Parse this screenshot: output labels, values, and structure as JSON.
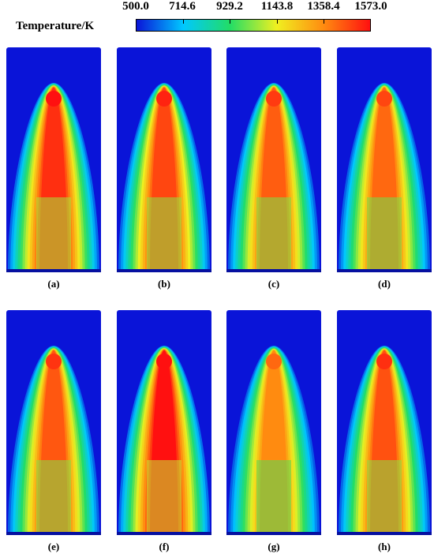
{
  "colorbar": {
    "title": "Temperature/K",
    "min": 500.0,
    "max": 1573.0,
    "ticks": [
      "500.0",
      "714.6",
      "929.2",
      "1143.8",
      "1358.4",
      "1573.0"
    ],
    "colors": [
      "#0a14d8",
      "#00c8ff",
      "#22dd66",
      "#f0f020",
      "#ff8c10",
      "#ff1010"
    ]
  },
  "panels": [
    {
      "label": "(a)",
      "peak": 1520
    },
    {
      "label": "(b)",
      "peak": 1480
    },
    {
      "label": "(c)",
      "peak": 1440
    },
    {
      "label": "(d)",
      "peak": 1420
    },
    {
      "label": "(e)",
      "peak": 1450
    },
    {
      "label": "(f)",
      "peak": 1573
    },
    {
      "label": "(g)",
      "peak": 1360
    },
    {
      "label": "(h)",
      "peak": 1460
    }
  ]
}
